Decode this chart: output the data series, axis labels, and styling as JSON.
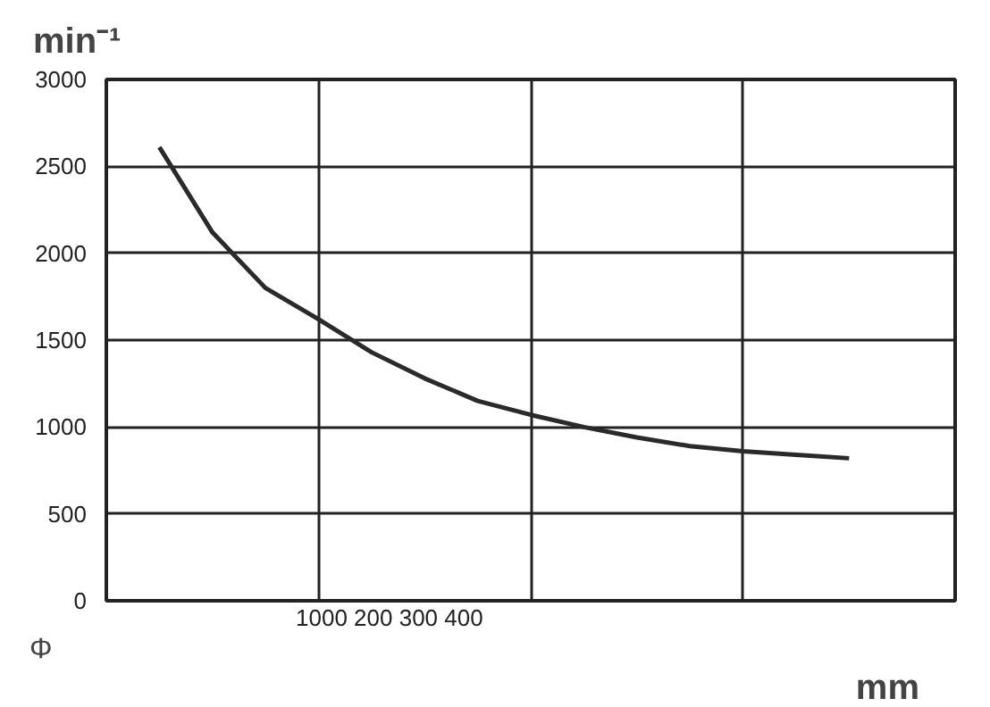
{
  "chart_data": {
    "type": "line",
    "ylabel": "min⁻¹",
    "xlabel": "mm",
    "annotations": [
      "Φ",
      "1000  200  300  400"
    ],
    "categories": [
      null,
      null,
      null,
      null,
      null,
      null,
      null,
      null,
      null,
      null,
      null,
      null,
      null,
      null
    ],
    "series": [
      {
        "color": "#2a2a2a",
        "values": [
          2610,
          2120,
          1800,
          1620,
          1430,
          1280,
          1150,
          1070,
          1000,
          940,
          890,
          860,
          840,
          820
        ]
      }
    ],
    "ylim": [
      0,
      3000
    ],
    "yticks": [
      0,
      500,
      1000,
      1500,
      2000,
      2500,
      3000
    ],
    "grid": true,
    "marker": "none",
    "line_style": "solid"
  }
}
